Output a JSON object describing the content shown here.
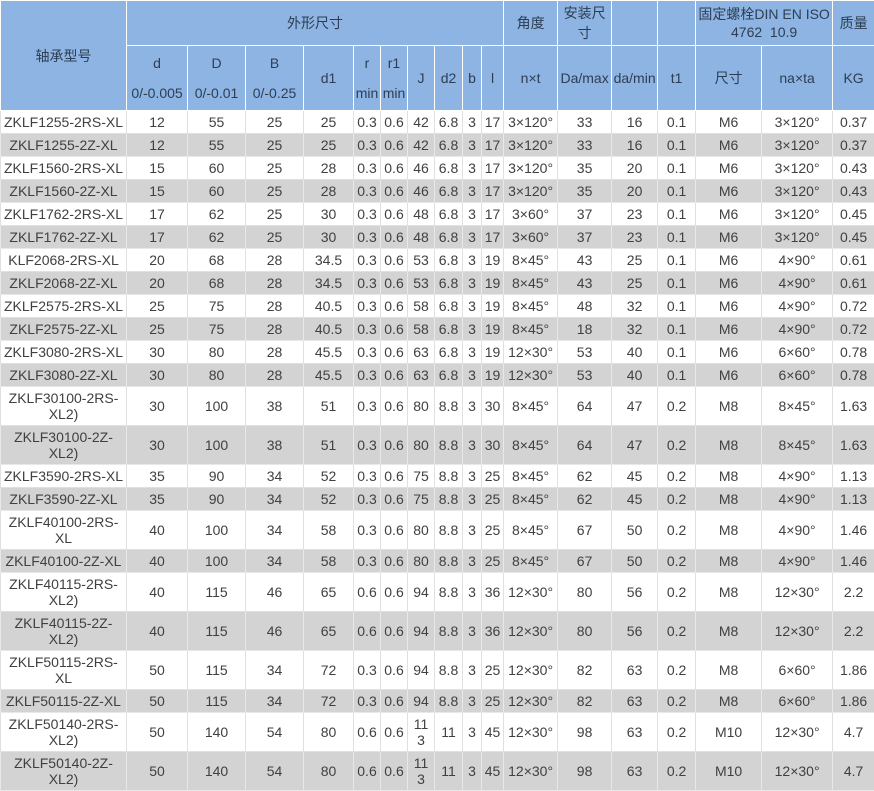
{
  "table": {
    "title_semantic": "bearing-specification-table",
    "header": {
      "model": "轴承型号",
      "dimensions_group": "外形尺寸",
      "angle_group": "角度",
      "mounting_group": "安装尺寸",
      "bolt_group_line1": "固定螺栓DIN EN ISO",
      "bolt_group_line2": "4762  10.9",
      "mass_group": "质量",
      "sub": {
        "d": "d",
        "d_tol": "0/-0.005",
        "D": "D",
        "D_tol": "0/-0.01",
        "B": "B",
        "B_tol": "0/-0.25",
        "d1": "d1",
        "r": "r",
        "r_min": "min",
        "r1": "r1",
        "r1_min": "min",
        "J": "J",
        "d2": "d2",
        "b": "b",
        "l": "l",
        "nxt": "n×t",
        "Da_max": "Da/max",
        "da_min": "da/min",
        "t1": "t1",
        "size": "尺寸",
        "naxta": "na×ta",
        "kg": "KG"
      }
    },
    "colors": {
      "header_bg": "#8db4e2",
      "header_text": "#2d3e54",
      "row_alt_bg": "#d3d3d3",
      "row_bg": "#ffffff",
      "body_text": "#404040"
    },
    "rows": [
      [
        "ZKLF1255-2RS-XL",
        "12",
        "55",
        "25",
        "25",
        "0.3",
        "0.6",
        "42",
        "6.8",
        "3",
        "17",
        "3×120°",
        "33",
        "16",
        "0.1",
        "M6",
        "3×120°",
        "0.37"
      ],
      [
        "ZKLF1255-2Z-XL",
        "12",
        "55",
        "25",
        "25",
        "0.3",
        "0.6",
        "42",
        "6.8",
        "3",
        "17",
        "3×120°",
        "33",
        "16",
        "0.1",
        "M6",
        "3×120°",
        "0.37"
      ],
      [
        "ZKLF1560-2RS-XL",
        "15",
        "60",
        "25",
        "28",
        "0.3",
        "0.6",
        "46",
        "6.8",
        "3",
        "17",
        "3×120°",
        "35",
        "20",
        "0.1",
        "M6",
        "3×120°",
        "0.43"
      ],
      [
        "ZKLF1560-2Z-XL",
        "15",
        "60",
        "25",
        "28",
        "0.3",
        "0.6",
        "46",
        "6.8",
        "3",
        "17",
        "3×120°",
        "35",
        "20",
        "0.1",
        "M6",
        "3×120°",
        "0.43"
      ],
      [
        "ZKLF1762-2RS-XL",
        "17",
        "62",
        "25",
        "30",
        "0.3",
        "0.6",
        "48",
        "6.8",
        "3",
        "17",
        "3×60°",
        "37",
        "23",
        "0.1",
        "M6",
        "3×120°",
        "0.45"
      ],
      [
        "ZKLF1762-2Z-XL",
        "17",
        "62",
        "25",
        "30",
        "0.3",
        "0.6",
        "48",
        "6.8",
        "3",
        "17",
        "3×60°",
        "37",
        "23",
        "0.1",
        "M6",
        "3×120°",
        "0.45"
      ],
      [
        "KLF2068-2RS-XL",
        "20",
        "68",
        "28",
        "34.5",
        "0.3",
        "0.6",
        "53",
        "6.8",
        "3",
        "19",
        "8×45°",
        "43",
        "25",
        "0.1",
        "M6",
        "4×90°",
        "0.61"
      ],
      [
        "ZKLF2068-2Z-XL",
        "20",
        "68",
        "28",
        "34.5",
        "0.3",
        "0.6",
        "53",
        "6.8",
        "3",
        "19",
        "8×45°",
        "43",
        "25",
        "0.1",
        "M6",
        "4×90°",
        "0.61"
      ],
      [
        "ZKLF2575-2RS-XL",
        "25",
        "75",
        "28",
        "40.5",
        "0.3",
        "0.6",
        "58",
        "6.8",
        "3",
        "19",
        "8×45°",
        "48",
        "32",
        "0.1",
        "M6",
        "4×90°",
        "0.72"
      ],
      [
        "ZKLF2575-2Z-XL",
        "25",
        "75",
        "28",
        "40.5",
        "0.3",
        "0.6",
        "58",
        "6.8",
        "3",
        "19",
        "8×45°",
        "18",
        "32",
        "0.1",
        "M6",
        "4×90°",
        "0.72"
      ],
      [
        "ZKLF3080-2RS-XL",
        "30",
        "80",
        "28",
        "45.5",
        "0.3",
        "0.6",
        "63",
        "6.8",
        "3",
        "19",
        "12×30°",
        "53",
        "40",
        "0.1",
        "M6",
        "6×60°",
        "0.78"
      ],
      [
        "ZKLF3080-2Z-XL",
        "30",
        "80",
        "28",
        "45.5",
        "0.3",
        "0.6",
        "63",
        "6.8",
        "3",
        "19",
        "12×30°",
        "53",
        "40",
        "0.1",
        "M6",
        "6×60°",
        "0.78"
      ],
      [
        "ZKLF30100-2RS-XL2)",
        "30",
        "100",
        "38",
        "51",
        "0.3",
        "0.6",
        "80",
        "8.8",
        "3",
        "30",
        "8×45°",
        "64",
        "47",
        "0.2",
        "M8",
        "8×45°",
        "1.63"
      ],
      [
        "ZKLF30100-2Z-XL2)",
        "30",
        "100",
        "38",
        "51",
        "0.3",
        "0.6",
        "80",
        "8.8",
        "3",
        "30",
        "8×45°",
        "64",
        "47",
        "0.2",
        "M8",
        "8×45°",
        "1.63"
      ],
      [
        "ZKLF3590-2RS-XL",
        "35",
        "90",
        "34",
        "52",
        "0.3",
        "0.6",
        "75",
        "8.8",
        "3",
        "25",
        "8×45°",
        "62",
        "45",
        "0.2",
        "M8",
        "4×90°",
        "1.13"
      ],
      [
        "ZKLF3590-2Z-XL",
        "35",
        "90",
        "34",
        "52",
        "0.3",
        "0.6",
        "75",
        "8.8",
        "3",
        "25",
        "8×45°",
        "62",
        "45",
        "0.2",
        "M8",
        "4×90°",
        "1.13"
      ],
      [
        "ZKLF40100-2RS-XL",
        "40",
        "100",
        "34",
        "58",
        "0.3",
        "0.6",
        "80",
        "8.8",
        "3",
        "25",
        "8×45°",
        "67",
        "50",
        "0.2",
        "M8",
        "4×90°",
        "1.46"
      ],
      [
        "ZKLF40100-2Z-XL",
        "40",
        "100",
        "34",
        "58",
        "0.3",
        "0.6",
        "80",
        "8.8",
        "3",
        "25",
        "8×45°",
        "67",
        "50",
        "0.2",
        "M8",
        "4×90°",
        "1.46"
      ],
      [
        "ZKLF40115-2RS-XL2)",
        "40",
        "115",
        "46",
        "65",
        "0.6",
        "0.6",
        "94",
        "8.8",
        "3",
        "36",
        "12×30°",
        "80",
        "56",
        "0.2",
        "M8",
        "12×30°",
        "2.2"
      ],
      [
        "ZKLF40115-2Z-XL2)",
        "40",
        "115",
        "46",
        "65",
        "0.6",
        "0.6",
        "94",
        "8.8",
        "3",
        "36",
        "12×30°",
        "80",
        "56",
        "0.2",
        "M8",
        "12×30°",
        "2.2"
      ],
      [
        "ZKLF50115-2RS-XL",
        "50",
        "115",
        "34",
        "72",
        "0.3",
        "0.6",
        "94",
        "8.8",
        "3",
        "25",
        "12×30°",
        "82",
        "63",
        "0.2",
        "M8",
        "6×60°",
        "1.86"
      ],
      [
        "ZKLF50115-2Z-XL",
        "50",
        "115",
        "34",
        "72",
        "0.3",
        "0.6",
        "94",
        "8.8",
        "3",
        "25",
        "12×30°",
        "82",
        "63",
        "0.2",
        "M8",
        "6×60°",
        "1.86"
      ],
      [
        "ZKLF50140-2RS-XL2)",
        "50",
        "140",
        "54",
        "80",
        "0.6",
        "0.6",
        "113",
        "11",
        "3",
        "45",
        "12×30°",
        "98",
        "63",
        "0.2",
        "M10",
        "12×30°",
        "4.7"
      ],
      [
        "ZKLF50140-2Z-XL2)",
        "50",
        "140",
        "54",
        "80",
        "0.6",
        "0.6",
        "113",
        "11",
        "3",
        "45",
        "12×30°",
        "98",
        "63",
        "0.2",
        "M10",
        "12×30°",
        "4.7"
      ]
    ]
  }
}
